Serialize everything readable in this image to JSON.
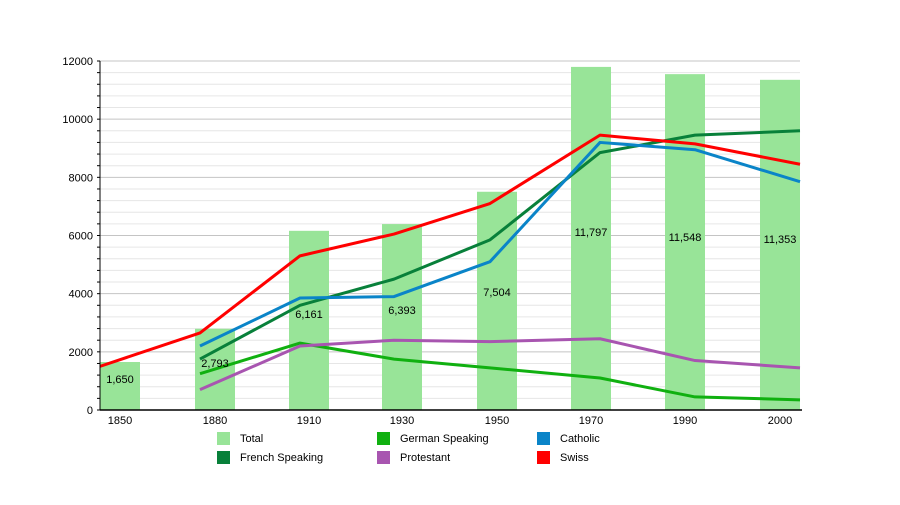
{
  "chart_data": {
    "type": "bar+line",
    "categories": [
      "1850",
      "1880",
      "1910",
      "1930",
      "1950",
      "1970",
      "1990",
      "2000"
    ],
    "ylim": [
      0,
      12000
    ],
    "yticks": [
      0,
      2000,
      4000,
      6000,
      8000,
      10000,
      12000
    ],
    "grid": true,
    "legend_position": "bottom",
    "bar_series": {
      "name": "Total",
      "color": "#98e498",
      "values": [
        1650,
        2793,
        6161,
        6393,
        7504,
        11797,
        11548,
        11353
      ],
      "labels": [
        "1,650",
        "2,793",
        "6,161",
        "6,393",
        "7,504",
        "11,797",
        "11,548",
        "11,353"
      ]
    },
    "line_series": [
      {
        "name": "French Speaking",
        "color": "#08803a",
        "values": [
          null,
          1750,
          3600,
          4500,
          5850,
          8850,
          9450,
          9600
        ]
      },
      {
        "name": "German Speaking",
        "color": "#10b010",
        "values": [
          null,
          1250,
          2300,
          1750,
          1450,
          1100,
          450,
          350
        ]
      },
      {
        "name": "Protestant",
        "color": "#a855b0",
        "values": [
          null,
          700,
          2200,
          2400,
          2350,
          2450,
          1700,
          1450
        ]
      },
      {
        "name": "Catholic",
        "color": "#0a84c8",
        "values": [
          null,
          2200,
          3850,
          3900,
          5100,
          9200,
          8950,
          7850
        ]
      },
      {
        "name": "Swiss",
        "color": "#ff0000",
        "values": [
          1500,
          2650,
          5300,
          6050,
          7100,
          9450,
          9150,
          8450
        ]
      }
    ],
    "legend": [
      "Total",
      "German Speaking",
      "Catholic",
      "French Speaking",
      "Protestant",
      "Swiss"
    ]
  }
}
